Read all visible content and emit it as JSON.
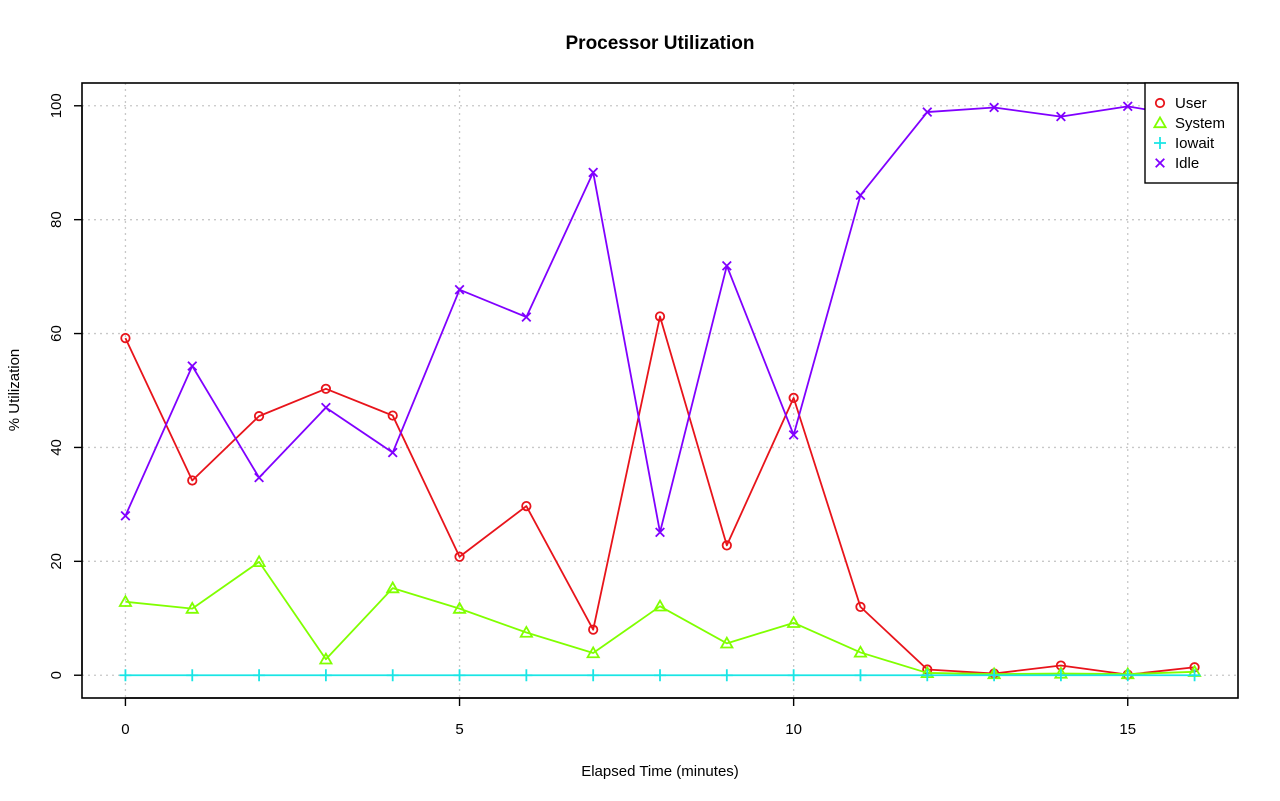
{
  "chart_data": {
    "type": "line",
    "title": "Processor Utilization",
    "xlabel": "Elapsed Time (minutes)",
    "ylabel": "% Utilization",
    "xlim": [
      -0.65,
      16.65
    ],
    "ylim": [
      -4,
      104
    ],
    "x_ticks": [
      0,
      5,
      10,
      15
    ],
    "y_ticks": [
      0,
      20,
      40,
      60,
      80,
      100
    ],
    "grid": true,
    "legend_position": "top-right",
    "x": [
      0,
      1,
      2,
      3,
      4,
      5,
      6,
      7,
      8,
      9,
      10,
      11,
      12,
      13,
      14,
      15,
      16
    ],
    "series": [
      {
        "name": "User",
        "color": "#e8141b",
        "marker": "circle",
        "values": [
          59.2,
          34.2,
          45.5,
          50.3,
          45.6,
          20.8,
          29.7,
          8.0,
          63.0,
          22.8,
          48.7,
          12.0,
          1.0,
          0.3,
          1.7,
          0.1,
          1.4
        ]
      },
      {
        "name": "System",
        "color": "#80ff00",
        "marker": "triangle",
        "values": [
          12.9,
          11.7,
          19.9,
          2.8,
          15.3,
          11.7,
          7.5,
          3.9,
          12.1,
          5.6,
          9.2,
          4.0,
          0.4,
          0.2,
          0.3,
          0.2,
          0.6
        ]
      },
      {
        "name": "Iowait",
        "color": "#19e5e5",
        "marker": "plus",
        "values": [
          0,
          0,
          0,
          0,
          0,
          0,
          0,
          0,
          0,
          0,
          0,
          0,
          0,
          0,
          0,
          0,
          0
        ]
      },
      {
        "name": "Idle",
        "color": "#8000ff",
        "marker": "cross",
        "values": [
          28.0,
          54.3,
          34.7,
          47.0,
          39.1,
          67.7,
          62.9,
          88.3,
          25.1,
          71.9,
          42.2,
          84.3,
          98.9,
          99.7,
          98.1,
          99.9,
          97.9
        ]
      }
    ]
  }
}
